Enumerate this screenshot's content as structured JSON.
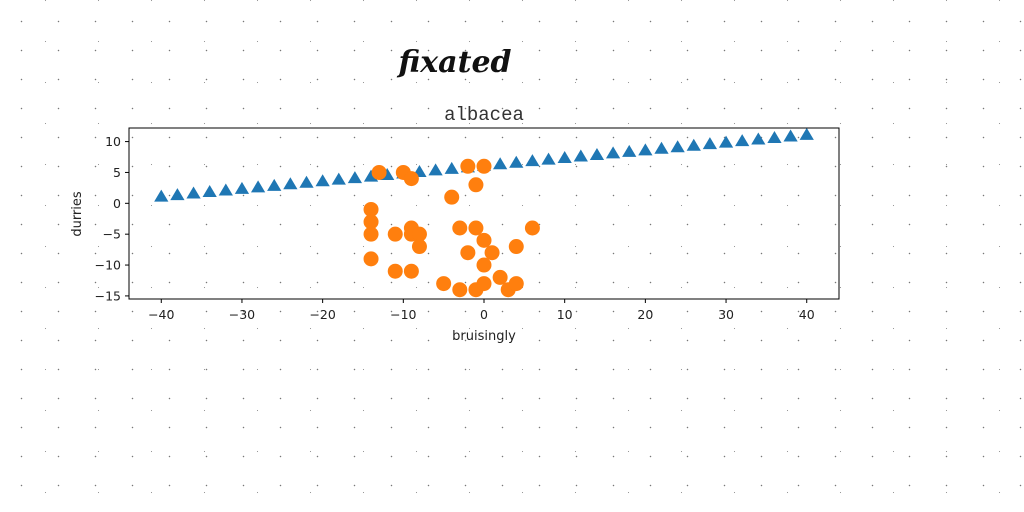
{
  "chart_data": {
    "type": "scatter",
    "suptitle": "fixated",
    "title": "albacea",
    "xlabel": "bruisingly",
    "ylabel": "durries",
    "xlim": [
      -44,
      44
    ],
    "ylim": [
      -15.5,
      12.2
    ],
    "xticks": [
      -40,
      -30,
      -20,
      -10,
      0,
      10,
      20,
      30,
      40
    ],
    "yticks": [
      10,
      5,
      0,
      -5,
      -10,
      -15
    ],
    "grid": false,
    "series": [
      {
        "marker": "triangle",
        "color": "#1f77b4",
        "points": [
          [
            -40,
            1
          ],
          [
            -38,
            1.25
          ],
          [
            -36,
            1.5
          ],
          [
            -34,
            1.75
          ],
          [
            -32,
            2
          ],
          [
            -30,
            2.25
          ],
          [
            -28,
            2.5
          ],
          [
            -26,
            2.75
          ],
          [
            -24,
            3
          ],
          [
            -22,
            3.25
          ],
          [
            -20,
            3.5
          ],
          [
            -18,
            3.75
          ],
          [
            -16,
            4
          ],
          [
            -14,
            4.25
          ],
          [
            -12,
            4.5
          ],
          [
            -10,
            4.75
          ],
          [
            -8,
            5
          ],
          [
            -6,
            5.25
          ],
          [
            -4,
            5.5
          ],
          [
            -2,
            5.75
          ],
          [
            0,
            6
          ],
          [
            2,
            6.25
          ],
          [
            4,
            6.5
          ],
          [
            6,
            6.75
          ],
          [
            8,
            7
          ],
          [
            10,
            7.25
          ],
          [
            12,
            7.5
          ],
          [
            14,
            7.75
          ],
          [
            16,
            8
          ],
          [
            18,
            8.25
          ],
          [
            20,
            8.5
          ],
          [
            22,
            8.75
          ],
          [
            24,
            9
          ],
          [
            26,
            9.25
          ],
          [
            28,
            9.5
          ],
          [
            30,
            9.75
          ],
          [
            32,
            10
          ],
          [
            34,
            10.25
          ],
          [
            36,
            10.5
          ],
          [
            38,
            10.75
          ],
          [
            40,
            11
          ]
        ]
      },
      {
        "marker": "circle",
        "color": "#ff7f0e",
        "points": [
          [
            -13,
            5
          ],
          [
            -10,
            5
          ],
          [
            -9,
            4
          ],
          [
            -2,
            6
          ],
          [
            0,
            6
          ],
          [
            -1,
            3
          ],
          [
            -4,
            1
          ],
          [
            -14,
            -1
          ],
          [
            -14,
            -3
          ],
          [
            -14,
            -5
          ],
          [
            -11,
            -5
          ],
          [
            -9,
            -4
          ],
          [
            -9,
            -5
          ],
          [
            -8,
            -5
          ],
          [
            -8,
            -7
          ],
          [
            -3,
            -4
          ],
          [
            -1,
            -4
          ],
          [
            0,
            -6
          ],
          [
            -2,
            -8
          ],
          [
            1,
            -8
          ],
          [
            4,
            -7
          ],
          [
            6,
            -4
          ],
          [
            -14,
            -9
          ],
          [
            -11,
            -11
          ],
          [
            -9,
            -11
          ],
          [
            0,
            -10
          ],
          [
            2,
            -12
          ],
          [
            -5,
            -13
          ],
          [
            -3,
            -14
          ],
          [
            -1,
            -14
          ],
          [
            0,
            -13
          ],
          [
            3,
            -14
          ],
          [
            4,
            -13
          ]
        ]
      }
    ]
  }
}
